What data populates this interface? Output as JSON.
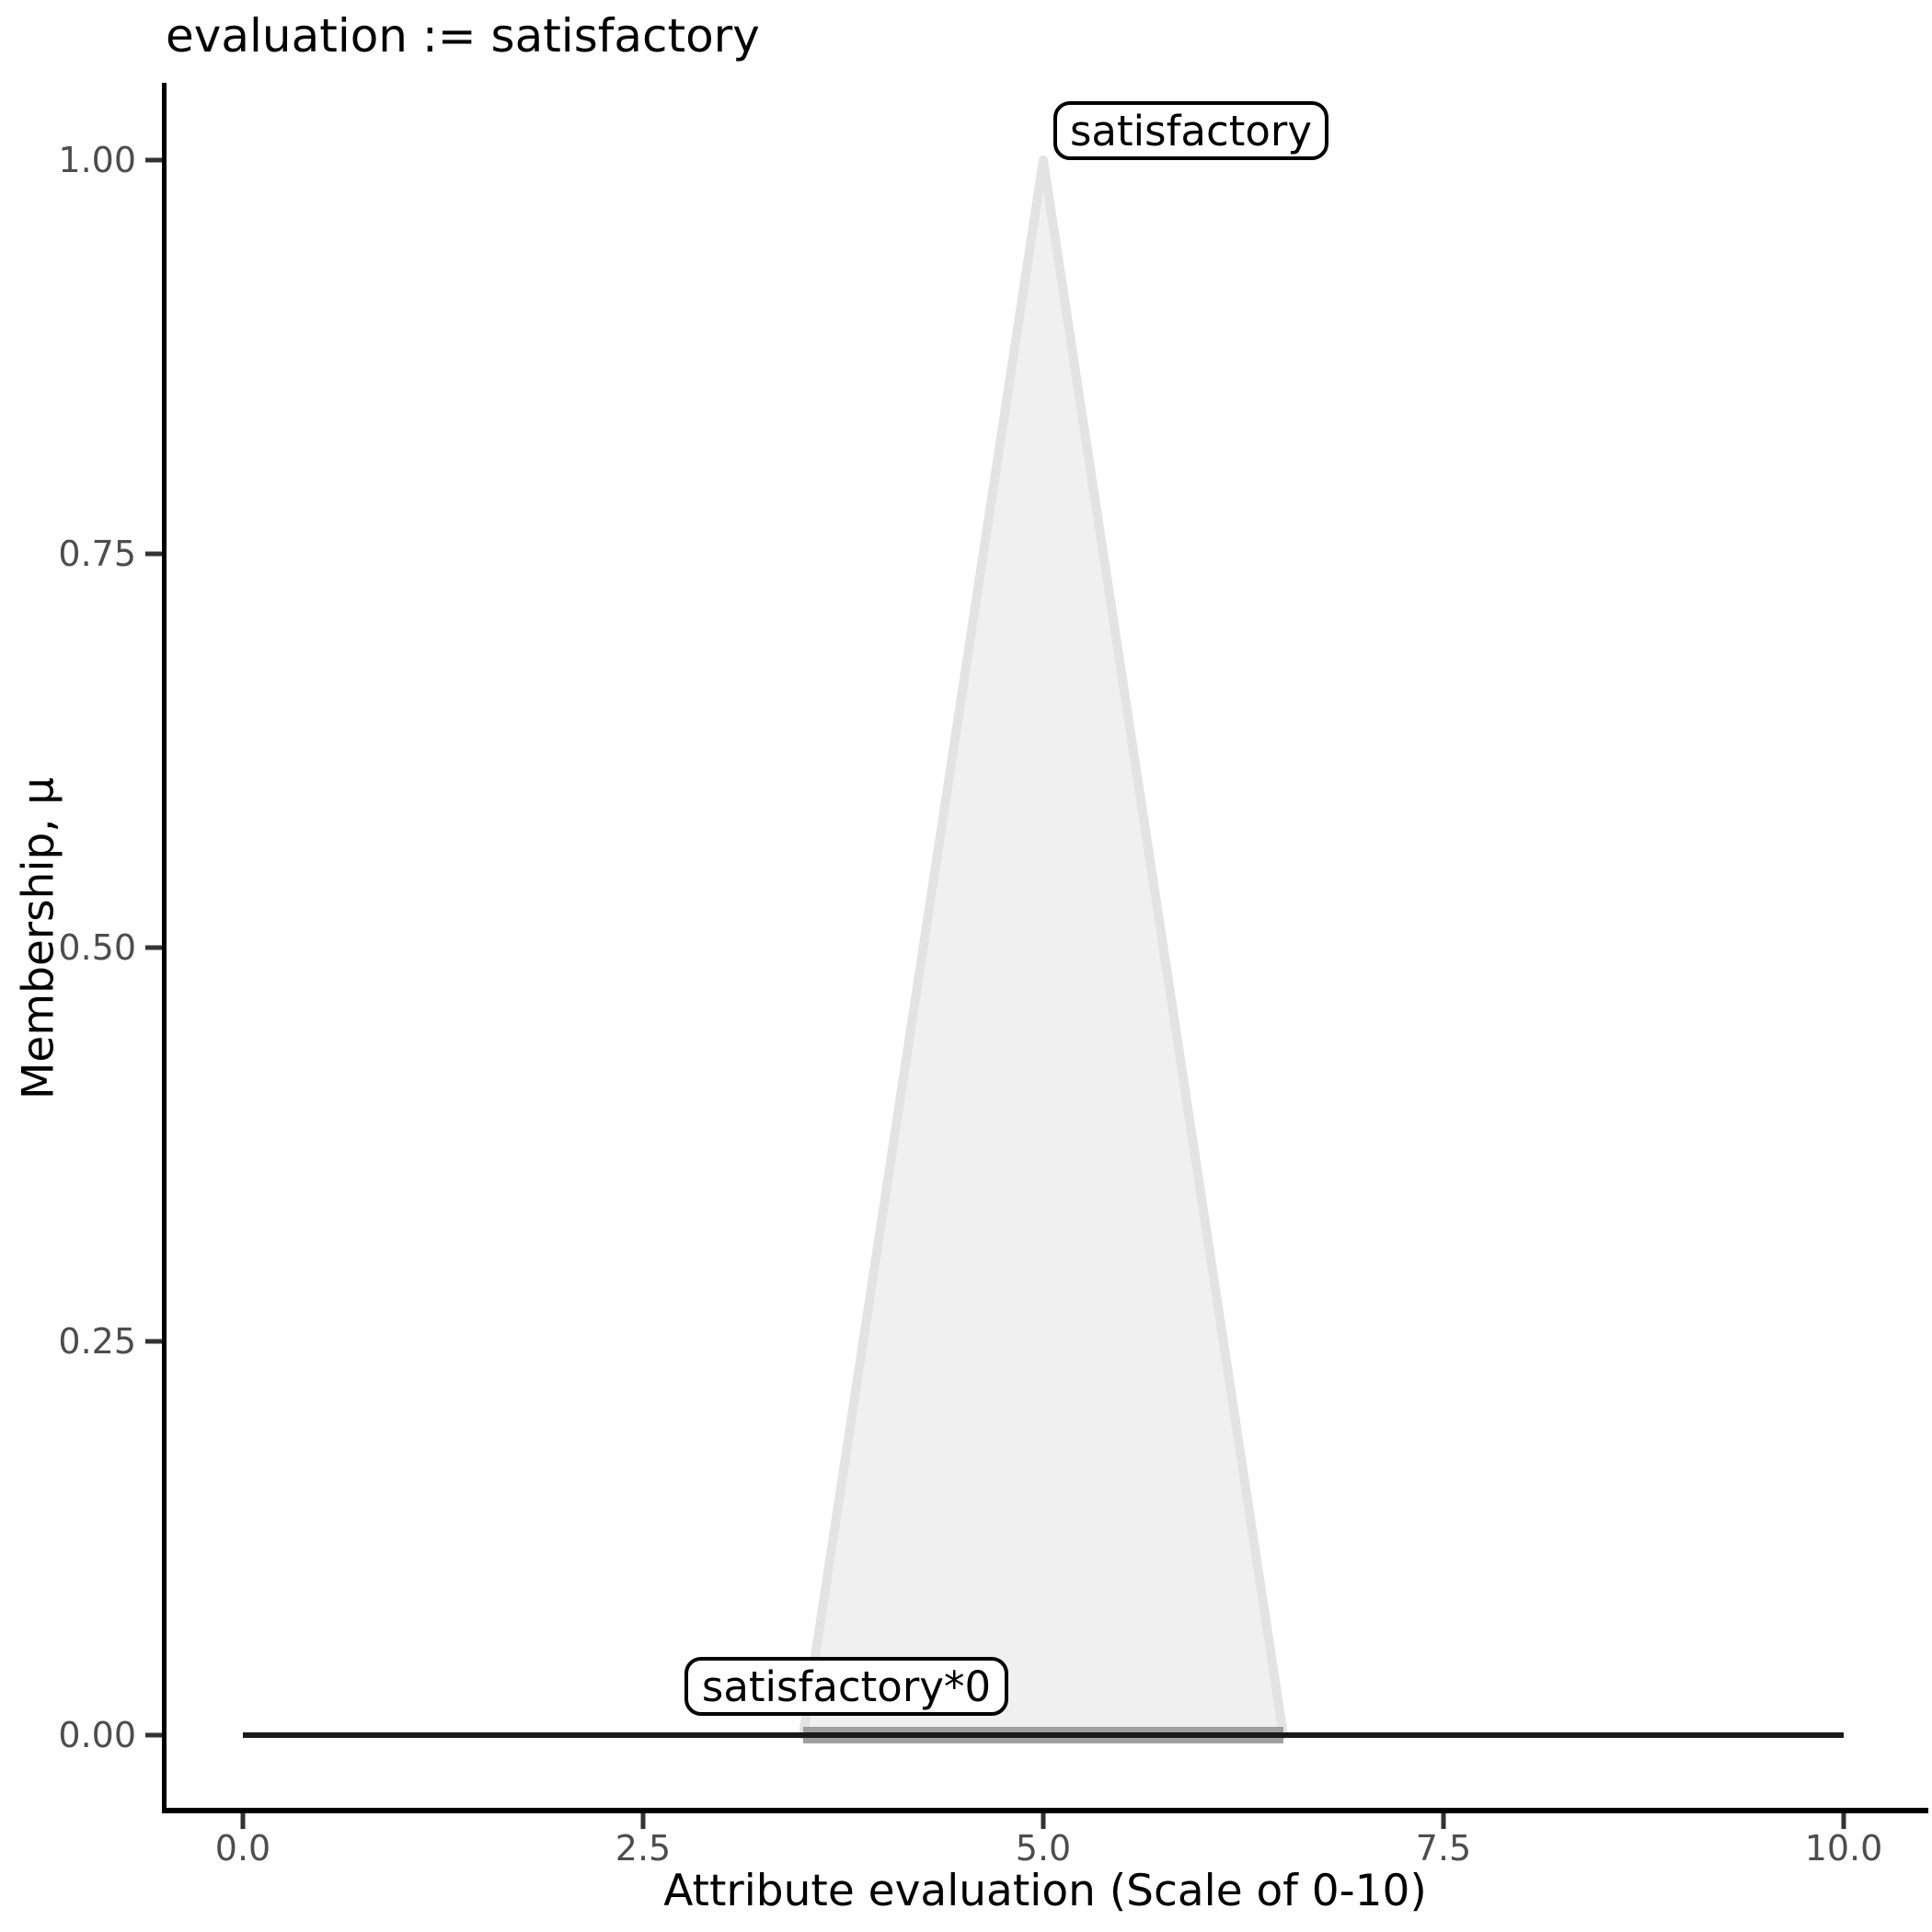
{
  "title": "evaluation := satisfactory",
  "chart_data": {
    "type": "area",
    "title": "evaluation := satisfactory",
    "xlabel": "Attribute evaluation (Scale of 0-10)",
    "ylabel": "Membership, μ",
    "xlim": [
      0,
      10
    ],
    "ylim": [
      0,
      1
    ],
    "grid": "off",
    "legend": "none",
    "xticks": {
      "values": [
        0,
        2.5,
        5,
        7.5,
        10
      ],
      "labels": [
        "0.0",
        "2.5",
        "5.0",
        "7.5",
        "10.0"
      ]
    },
    "yticks": {
      "values": [
        0,
        0.25,
        0.5,
        0.75,
        1
      ],
      "labels": [
        "0.00",
        "0.25",
        "0.50",
        "0.75",
        "1.00"
      ]
    },
    "series": [
      {
        "name": "satisfactory",
        "kind": "membership-triangle",
        "points": [
          [
            3.5,
            0
          ],
          [
            5,
            1
          ],
          [
            6.5,
            0
          ]
        ],
        "closed": true,
        "fill": "#f0f0f0",
        "stroke": "#e3e3e3",
        "stroke_width": 10
      },
      {
        "name": "satisfactory-support-band",
        "kind": "line",
        "points": [
          [
            3.5,
            0
          ],
          [
            6.5,
            0
          ]
        ],
        "closed": false,
        "fill": "none",
        "stroke": "#9e9e9e",
        "stroke_width": 18
      },
      {
        "name": "satisfactory*0",
        "kind": "line",
        "points": [
          [
            0,
            0
          ],
          [
            10,
            0
          ]
        ],
        "closed": false,
        "fill": "none",
        "stroke": "#1a1a1a",
        "stroke_width": 6
      }
    ],
    "annotations": [
      {
        "text": "satisfactory",
        "anchor_xy": [
          5,
          1
        ]
      },
      {
        "text": "satisfactory*0",
        "anchor_xy": [
          3.5,
          0
        ]
      }
    ]
  },
  "colors": {
    "background": "#ffffff",
    "axis_line": "#000000",
    "tick_mark": "#333333",
    "tick_label": "#4d4d4d",
    "title_text": "#000000",
    "triangle_fill": "#f0f0f0",
    "triangle_stroke": "#e3e3e3",
    "support_band": "#9e9e9e",
    "zero_line": "#1a1a1a",
    "label_box_border": "#000000",
    "label_box_fill": "#ffffff"
  }
}
